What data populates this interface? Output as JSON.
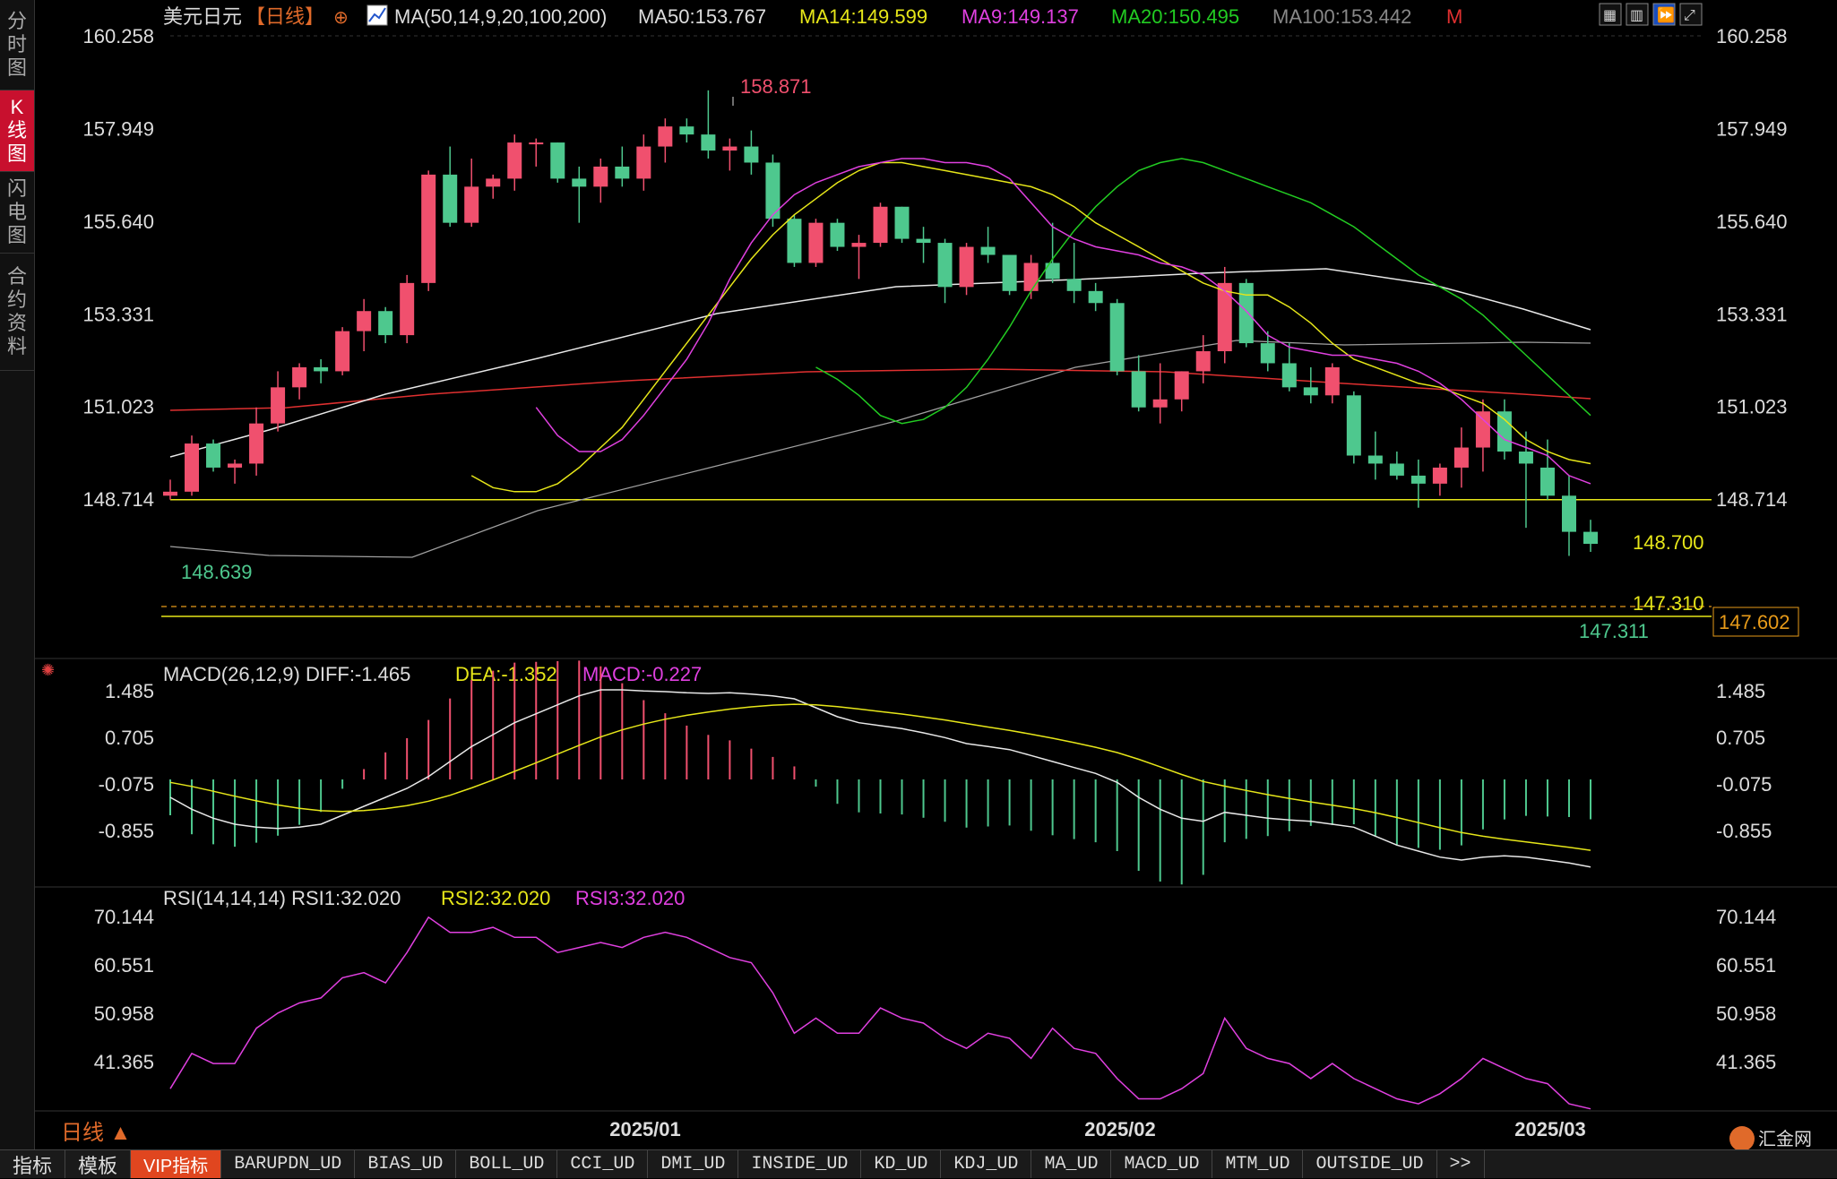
{
  "sidebar": {
    "tabs": [
      {
        "label": "分时图",
        "active": false
      },
      {
        "label": "K线图",
        "active": true
      },
      {
        "label": "闪电图",
        "active": false
      },
      {
        "label": "合约资料",
        "active": false
      }
    ]
  },
  "header": {
    "symbol": "美元日元",
    "period": "【日线】",
    "ma_title": "MA(50,14,9,20,100,200)",
    "ma50": "MA50:153.767",
    "ma14": "MA14:149.599",
    "ma9": "MA9:149.137",
    "ma20": "MA20:150.495",
    "ma100": "MA100:153.442",
    "m_label": "M"
  },
  "toolbar_icons": [
    "layout-grid-icon",
    "table-icon",
    "fast-forward-icon",
    "expand-icon"
  ],
  "price_axis": {
    "ticks": [
      "160.258",
      "157.949",
      "155.640",
      "153.331",
      "151.023",
      "148.714"
    ]
  },
  "annotations": {
    "high": "158.871",
    "low_left": "148.639",
    "low_right": "147.311",
    "level1": "148.700",
    "level2": "147.310",
    "current": "147.602"
  },
  "macd": {
    "title": "MACD(26,12,9)",
    "diff": "DIFF:-1.465",
    "dea": "DEA:-1.352",
    "macd": "MACD:-0.227",
    "ticks": [
      "1.485",
      "0.705",
      "-0.075",
      "-0.855"
    ]
  },
  "rsi": {
    "title": "RSI(14,14,14)",
    "rsi1": "RSI1:32.020",
    "rsi2": "RSI2:32.020",
    "rsi3": "RSI3:32.020",
    "ticks": [
      "70.144",
      "60.551",
      "50.958",
      "41.365"
    ]
  },
  "time_axis": {
    "labels": [
      "2025/01",
      "2025/02",
      "2025/03"
    ]
  },
  "period_button": "日线 ▲",
  "watermark": "汇金网",
  "watermark_url": "www.gold678.com",
  "bottom_tabs": [
    "指标",
    "模板",
    "VIP指标",
    "BARUPDN_UD",
    "BIAS_UD",
    "BOLL_UD",
    "CCI_UD",
    "DMI_UD",
    "INSIDE_UD",
    "KD_UD",
    "KDJ_UD",
    "MA_UD",
    "MACD_UD",
    "MTM_UD",
    "OUTSIDE_UD",
    ">>"
  ],
  "colors": {
    "up": "#f0506e",
    "down": "#4ec88e",
    "ma14": "#e6e619",
    "ma9": "#e040e0",
    "ma20": "#22cc22",
    "ma50": "#e8e8e8",
    "ma100": "#a0a0a0",
    "ma200": "#e03030",
    "rsi": "#e040e0"
  },
  "chart_data": {
    "type": "candlestick",
    "candles": [
      [
        148.8,
        149.2,
        148.7,
        148.9
      ],
      [
        148.9,
        150.3,
        148.8,
        150.1
      ],
      [
        150.1,
        150.2,
        149.4,
        149.5
      ],
      [
        149.5,
        149.7,
        149.1,
        149.6
      ],
      [
        149.6,
        151.0,
        149.3,
        150.6
      ],
      [
        150.6,
        151.9,
        150.4,
        151.5
      ],
      [
        151.5,
        152.1,
        151.2,
        152.0
      ],
      [
        152.0,
        152.2,
        151.6,
        151.9
      ],
      [
        151.9,
        153.0,
        151.8,
        152.9
      ],
      [
        152.9,
        153.7,
        152.4,
        153.4
      ],
      [
        153.4,
        153.5,
        152.6,
        152.8
      ],
      [
        152.8,
        154.3,
        152.6,
        154.1
      ],
      [
        154.1,
        156.9,
        153.9,
        156.8
      ],
      [
        156.8,
        157.5,
        155.5,
        155.6
      ],
      [
        155.6,
        157.2,
        155.5,
        156.5
      ],
      [
        156.5,
        156.8,
        156.2,
        156.7
      ],
      [
        156.7,
        157.8,
        156.4,
        157.6
      ],
      [
        157.6,
        157.7,
        157.0,
        157.6
      ],
      [
        157.6,
        157.6,
        156.6,
        156.7
      ],
      [
        156.7,
        157.0,
        155.6,
        156.5
      ],
      [
        156.5,
        157.2,
        156.1,
        157.0
      ],
      [
        157.0,
        157.5,
        156.5,
        156.7
      ],
      [
        156.7,
        157.8,
        156.4,
        157.5
      ],
      [
        157.5,
        158.2,
        157.1,
        158.0
      ],
      [
        158.0,
        158.2,
        157.6,
        157.8
      ],
      [
        157.8,
        158.9,
        157.2,
        157.4
      ],
      [
        157.4,
        157.7,
        156.9,
        157.5
      ],
      [
        157.5,
        157.9,
        156.8,
        157.1
      ],
      [
        157.1,
        157.3,
        155.5,
        155.7
      ],
      [
        155.7,
        155.8,
        154.5,
        154.6
      ],
      [
        154.6,
        155.7,
        154.5,
        155.6
      ],
      [
        155.6,
        155.7,
        154.9,
        155.0
      ],
      [
        155.0,
        155.3,
        154.2,
        155.1
      ],
      [
        155.1,
        156.1,
        155.0,
        156.0
      ],
      [
        156.0,
        156.0,
        155.1,
        155.2
      ],
      [
        155.2,
        155.5,
        154.6,
        155.1
      ],
      [
        155.1,
        155.2,
        153.6,
        154.0
      ],
      [
        154.0,
        155.1,
        153.8,
        155.0
      ],
      [
        155.0,
        155.5,
        154.6,
        154.8
      ],
      [
        154.8,
        154.8,
        153.8,
        153.9
      ],
      [
        153.9,
        154.8,
        153.7,
        154.6
      ],
      [
        154.6,
        155.6,
        154.1,
        154.2
      ],
      [
        154.2,
        155.1,
        153.6,
        153.9
      ],
      [
        153.9,
        154.1,
        153.4,
        153.6
      ],
      [
        153.6,
        153.7,
        151.8,
        151.9
      ],
      [
        151.9,
        152.3,
        150.9,
        151.0
      ],
      [
        151.0,
        152.1,
        150.6,
        151.2
      ],
      [
        151.2,
        151.9,
        150.9,
        151.9
      ],
      [
        151.9,
        152.8,
        151.6,
        152.4
      ],
      [
        152.4,
        154.5,
        152.1,
        154.1
      ],
      [
        154.1,
        154.2,
        152.5,
        152.6
      ],
      [
        152.6,
        152.9,
        151.9,
        152.1
      ],
      [
        152.1,
        152.6,
        151.4,
        151.5
      ],
      [
        151.5,
        152.0,
        151.1,
        151.3
      ],
      [
        151.3,
        152.1,
        151.1,
        152.0
      ],
      [
        151.3,
        151.4,
        149.6,
        149.8
      ],
      [
        149.8,
        150.4,
        149.2,
        149.6
      ],
      [
        149.6,
        149.9,
        149.2,
        149.3
      ],
      [
        149.3,
        149.7,
        148.5,
        149.1
      ],
      [
        149.1,
        149.6,
        148.8,
        149.5
      ],
      [
        149.5,
        150.5,
        149.0,
        150.0
      ],
      [
        150.0,
        151.2,
        149.4,
        150.9
      ],
      [
        150.9,
        151.2,
        149.7,
        149.9
      ],
      [
        149.9,
        150.4,
        148.0,
        149.6
      ],
      [
        149.5,
        150.2,
        148.7,
        148.8
      ],
      [
        148.8,
        149.3,
        147.3,
        147.9
      ],
      [
        147.9,
        148.2,
        147.4,
        147.6
      ]
    ],
    "ma14": [
      149.3,
      149.0,
      148.9,
      148.9,
      149.1,
      149.5,
      150.0,
      150.5,
      151.2,
      151.9,
      152.6,
      153.3,
      154.0,
      154.7,
      155.3,
      155.8,
      156.2,
      156.6,
      156.9,
      157.1,
      157.1,
      157.0,
      156.9,
      156.8,
      156.7,
      156.6,
      156.5,
      156.3,
      156.0,
      155.6,
      155.3,
      155.0,
      154.7,
      154.4,
      154.1,
      153.9,
      153.8,
      153.8,
      153.5,
      153.1,
      152.6,
      152.2,
      152.0,
      151.8,
      151.6,
      151.5,
      151.3,
      151.1,
      150.7,
      150.2,
      149.9,
      149.7,
      149.6
    ],
    "ma9": [
      151.0,
      150.3,
      149.9,
      149.9,
      150.2,
      150.8,
      151.5,
      152.2,
      153.1,
      154.2,
      155.1,
      155.8,
      156.3,
      156.6,
      156.8,
      157.0,
      157.1,
      157.2,
      157.2,
      157.1,
      157.1,
      157.0,
      156.7,
      156.1,
      155.5,
      155.2,
      155.0,
      154.9,
      154.8,
      154.6,
      154.5,
      154.3,
      153.9,
      153.4,
      152.8,
      152.5,
      152.4,
      152.3,
      152.3,
      152.2,
      152.1,
      151.9,
      151.6,
      151.2,
      150.7,
      150.2,
      150.0,
      149.8,
      149.3,
      149.1
    ],
    "ma20": [
      152.0,
      151.7,
      151.3,
      150.8,
      150.6,
      150.7,
      151.0,
      151.5,
      152.2,
      153.0,
      153.9,
      154.7,
      155.4,
      156.0,
      156.5,
      156.9,
      157.1,
      157.2,
      157.1,
      156.9,
      156.7,
      156.5,
      156.3,
      156.1,
      155.8,
      155.5,
      155.1,
      154.7,
      154.3,
      154.0,
      153.7,
      153.3,
      152.8,
      152.3,
      151.8,
      151.3,
      150.8
    ]
  }
}
